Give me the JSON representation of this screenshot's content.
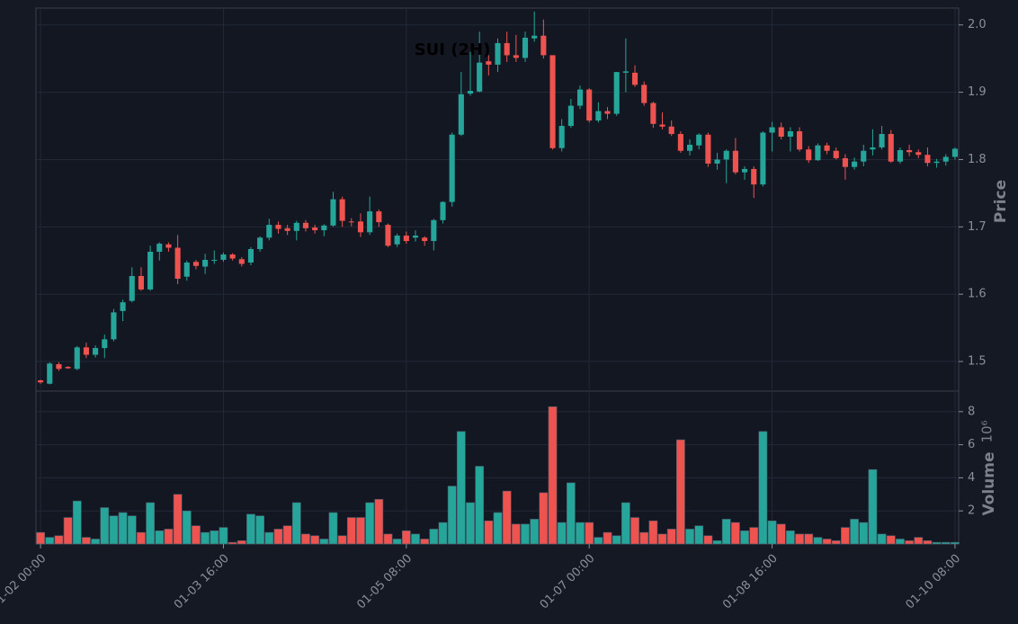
{
  "chart_data": {
    "type": "candlestick",
    "title": "SUI (2H)",
    "y_label": "Price",
    "volume_label": "Volume",
    "volume_multiplier": "10⁶",
    "up_color": "#26a69a",
    "down_color": "#ef5350",
    "grid": true,
    "xlim": [
      -0.5,
      100.4
    ],
    "xticks": [
      {
        "value": 0,
        "label": "01-02 00:00"
      },
      {
        "value": 20,
        "label": "01-03 16:00"
      },
      {
        "value": 40,
        "label": "01-05 08:00"
      },
      {
        "value": 60,
        "label": "01-07 00:00"
      },
      {
        "value": 80,
        "label": "01-08 16:00"
      },
      {
        "value": 100,
        "label": "01-10 08:00"
      }
    ],
    "ylim": [
      1.456,
      2.025
    ],
    "yticks": [
      1.5,
      1.6,
      1.7,
      1.8,
      1.9,
      {
        "value": 2,
        "label": "2.0"
      }
    ],
    "volume_ylim": [
      0,
      9.24
    ],
    "volume_yticks": [
      2,
      4,
      6,
      8
    ],
    "open": [
      1.472,
      1.467,
      1.496,
      1.492,
      1.489,
      1.521,
      1.51,
      1.52,
      1.533,
      1.575,
      1.59,
      1.627,
      1.607,
      1.663,
      1.674,
      1.669,
      1.626,
      1.648,
      1.641,
      1.65,
      1.651,
      1.659,
      1.652,
      1.647,
      1.667,
      1.684,
      1.703,
      1.698,
      1.694,
      1.706,
      1.699,
      1.695,
      1.702,
      1.741,
      1.708,
      1.708,
      1.692,
      1.723,
      1.703,
      1.674,
      1.687,
      1.684,
      1.684,
      1.679,
      1.71,
      1.737,
      1.837,
      1.898,
      1.901,
      1.946,
      1.941,
      1.973,
      1.955,
      1.951,
      1.98,
      1.984,
      1.955,
      1.817,
      1.85,
      1.88,
      1.904,
      1.858,
      1.872,
      1.868,
      1.929,
      1.929,
      1.911,
      1.884,
      1.852,
      1.849,
      1.838,
      1.813,
      1.821,
      1.837,
      1.794,
      1.8,
      1.813,
      1.781,
      1.786,
      1.763,
      1.84,
      1.848,
      1.834,
      1.842,
      1.815,
      1.799,
      1.821,
      1.813,
      1.802,
      1.789,
      1.797,
      1.815,
      1.818,
      1.838,
      1.797,
      1.814,
      1.811,
      1.807,
      1.795,
      1.797,
      1.804
    ],
    "high": [
      1.473,
      1.499,
      1.499,
      1.493,
      1.523,
      1.528,
      1.524,
      1.54,
      1.578,
      1.592,
      1.64,
      1.64,
      1.672,
      1.677,
      1.677,
      1.688,
      1.65,
      1.651,
      1.66,
      1.665,
      1.662,
      1.661,
      1.655,
      1.67,
      1.686,
      1.712,
      1.708,
      1.703,
      1.709,
      1.71,
      1.703,
      1.704,
      1.752,
      1.745,
      1.713,
      1.72,
      1.745,
      1.726,
      1.705,
      1.69,
      1.693,
      1.695,
      1.686,
      1.712,
      1.738,
      1.84,
      1.93,
      1.96,
      1.99,
      1.955,
      1.98,
      1.99,
      1.985,
      1.99,
      2.02,
      2.008,
      1.955,
      1.86,
      1.89,
      1.91,
      1.906,
      1.885,
      1.878,
      1.93,
      1.98,
      1.94,
      1.916,
      1.886,
      1.87,
      1.858,
      1.842,
      1.83,
      1.839,
      1.84,
      1.81,
      1.815,
      1.832,
      1.79,
      1.79,
      1.842,
      1.856,
      1.855,
      1.848,
      1.848,
      1.82,
      1.824,
      1.825,
      1.818,
      1.808,
      1.803,
      1.822,
      1.845,
      1.85,
      1.844,
      1.818,
      1.822,
      1.815,
      1.818,
      1.801,
      1.808,
      1.818
    ],
    "low": [
      1.467,
      1.466,
      1.486,
      1.489,
      1.487,
      1.505,
      1.506,
      1.505,
      1.53,
      1.56,
      1.588,
      1.605,
      1.605,
      1.65,
      1.663,
      1.615,
      1.62,
      1.637,
      1.63,
      1.645,
      1.648,
      1.65,
      1.641,
      1.643,
      1.663,
      1.68,
      1.69,
      1.688,
      1.68,
      1.693,
      1.69,
      1.686,
      1.7,
      1.7,
      1.701,
      1.685,
      1.688,
      1.7,
      1.67,
      1.67,
      1.675,
      1.678,
      1.672,
      1.665,
      1.705,
      1.73,
      1.835,
      1.895,
      1.9,
      1.925,
      1.93,
      1.945,
      1.945,
      1.945,
      1.975,
      1.95,
      1.815,
      1.812,
      1.847,
      1.875,
      1.855,
      1.855,
      1.86,
      1.865,
      1.9,
      1.908,
      1.88,
      1.847,
      1.845,
      1.835,
      1.81,
      1.806,
      1.815,
      1.789,
      1.785,
      1.765,
      1.778,
      1.77,
      1.743,
      1.76,
      1.812,
      1.83,
      1.812,
      1.812,
      1.795,
      1.798,
      1.808,
      1.8,
      1.77,
      1.785,
      1.79,
      1.806,
      1.815,
      1.795,
      1.794,
      1.805,
      1.802,
      1.79,
      1.788,
      1.791,
      1.8
    ],
    "close": [
      1.469,
      1.497,
      1.489,
      1.49,
      1.521,
      1.51,
      1.52,
      1.533,
      1.573,
      1.588,
      1.627,
      1.607,
      1.663,
      1.675,
      1.669,
      1.623,
      1.647,
      1.642,
      1.651,
      1.651,
      1.659,
      1.653,
      1.645,
      1.667,
      1.684,
      1.703,
      1.697,
      1.694,
      1.706,
      1.698,
      1.695,
      1.702,
      1.741,
      1.709,
      1.707,
      1.692,
      1.723,
      1.707,
      1.672,
      1.687,
      1.679,
      1.687,
      1.679,
      1.71,
      1.737,
      1.837,
      1.897,
      1.902,
      1.944,
      1.941,
      1.973,
      1.955,
      1.951,
      1.981,
      1.984,
      1.955,
      1.817,
      1.85,
      1.88,
      1.904,
      1.858,
      1.872,
      1.868,
      1.93,
      1.931,
      1.911,
      1.884,
      1.853,
      1.849,
      1.838,
      1.813,
      1.822,
      1.837,
      1.794,
      1.8,
      1.813,
      1.781,
      1.786,
      1.763,
      1.84,
      1.848,
      1.834,
      1.842,
      1.815,
      1.799,
      1.821,
      1.813,
      1.802,
      1.789,
      1.797,
      1.813,
      1.818,
      1.838,
      1.797,
      1.814,
      1.811,
      1.807,
      1.795,
      1.797,
      1.804,
      1.816
    ],
    "volume": [
      0.7,
      0.4,
      0.5,
      1.6,
      2.6,
      0.4,
      0.3,
      2.2,
      1.7,
      1.9,
      1.7,
      0.7,
      2.5,
      0.8,
      0.9,
      3.0,
      2.0,
      1.1,
      0.7,
      0.8,
      1.0,
      0.1,
      0.2,
      1.8,
      1.7,
      0.7,
      0.9,
      1.1,
      2.5,
      0.6,
      0.5,
      0.3,
      1.9,
      0.5,
      1.6,
      1.6,
      2.5,
      2.7,
      0.6,
      0.3,
      0.8,
      0.6,
      0.3,
      0.9,
      1.3,
      3.5,
      6.8,
      2.5,
      4.7,
      1.4,
      1.9,
      3.2,
      1.2,
      1.2,
      1.5,
      3.1,
      8.3,
      1.3,
      3.7,
      1.3,
      1.3,
      0.4,
      0.7,
      0.5,
      2.5,
      1.6,
      0.7,
      1.4,
      0.6,
      0.9,
      6.3,
      0.9,
      1.1,
      0.5,
      0.2,
      1.5,
      1.3,
      0.8,
      1.0,
      6.8,
      1.4,
      1.2,
      0.8,
      0.6,
      0.6,
      0.4,
      0.3,
      0.2,
      1.0,
      1.5,
      1.3,
      4.5,
      0.6,
      0.5,
      0.3,
      0.2,
      0.4,
      0.2,
      0.1,
      0.1,
      0.1
    ]
  }
}
